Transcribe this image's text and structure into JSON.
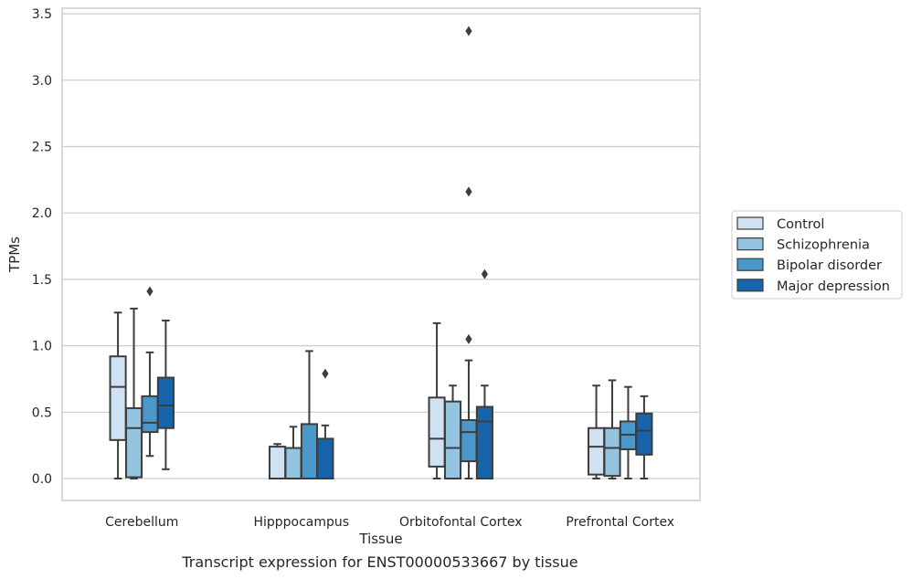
{
  "caption": "Transcript expression for ENST00000533667 by tissue",
  "chart_data": {
    "type": "box",
    "xlabel": "Tissue",
    "ylabel": "TPMs",
    "ylim": [
      -0.16,
      3.56
    ],
    "yticks": [
      0.0,
      0.5,
      1.0,
      1.5,
      2.0,
      2.5,
      3.0,
      3.5
    ],
    "ytick_labels": [
      "0.0",
      "0.5",
      "1.0",
      "1.5",
      "2.0",
      "2.5",
      "3.0",
      "3.5"
    ],
    "grid": true,
    "legend_position": "right",
    "categories": [
      "Cerebellum",
      "Hipppocampus",
      "Orbitofontal Cortex",
      "Prefrontal Cortex"
    ],
    "series": [
      {
        "name": "Control",
        "color": "#d0e1f2",
        "boxes": [
          {
            "whislo": 0.0,
            "q1": 0.29,
            "med": 0.69,
            "q3": 0.92,
            "whishi": 1.25,
            "fliers": []
          },
          {
            "whislo": 0.0,
            "q1": 0.0,
            "med": 0.0,
            "q3": 0.24,
            "whishi": 0.26,
            "fliers": []
          },
          {
            "whislo": 0.0,
            "q1": 0.09,
            "med": 0.3,
            "q3": 0.61,
            "whishi": 1.17,
            "fliers": []
          },
          {
            "whislo": 0.0,
            "q1": 0.03,
            "med": 0.24,
            "q3": 0.38,
            "whishi": 0.7,
            "fliers": []
          }
        ]
      },
      {
        "name": "Schizophrenia",
        "color": "#94c4df",
        "boxes": [
          {
            "whislo": 0.0,
            "q1": 0.01,
            "med": 0.38,
            "q3": 0.53,
            "whishi": 1.28,
            "fliers": []
          },
          {
            "whislo": 0.0,
            "q1": 0.0,
            "med": 0.0,
            "q3": 0.23,
            "whishi": 0.39,
            "fliers": []
          },
          {
            "whislo": 0.0,
            "q1": 0.0,
            "med": 0.23,
            "q3": 0.58,
            "whishi": 0.7,
            "fliers": []
          },
          {
            "whislo": 0.0,
            "q1": 0.02,
            "med": 0.23,
            "q3": 0.38,
            "whishi": 0.74,
            "fliers": []
          }
        ]
      },
      {
        "name": "Bipolar disorder",
        "color": "#4a98c9",
        "boxes": [
          {
            "whislo": 0.17,
            "q1": 0.35,
            "med": 0.42,
            "q3": 0.62,
            "whishi": 0.95,
            "fliers": [
              1.41
            ]
          },
          {
            "whislo": 0.0,
            "q1": 0.0,
            "med": 0.0,
            "q3": 0.41,
            "whishi": 0.96,
            "fliers": []
          },
          {
            "whislo": 0.0,
            "q1": 0.13,
            "med": 0.35,
            "q3": 0.44,
            "whishi": 0.89,
            "fliers": [
              3.37,
              2.16,
              1.05
            ]
          },
          {
            "whislo": 0.0,
            "q1": 0.22,
            "med": 0.33,
            "q3": 0.43,
            "whishi": 0.69,
            "fliers": []
          }
        ]
      },
      {
        "name": "Major depression",
        "color": "#1764ab",
        "boxes": [
          {
            "whislo": 0.07,
            "q1": 0.38,
            "med": 0.55,
            "q3": 0.76,
            "whishi": 1.19,
            "fliers": []
          },
          {
            "whislo": 0.0,
            "q1": 0.0,
            "med": 0.0,
            "q3": 0.3,
            "whishi": 0.4,
            "fliers": [
              0.79
            ]
          },
          {
            "whislo": 0.0,
            "q1": 0.0,
            "med": 0.43,
            "q3": 0.54,
            "whishi": 0.7,
            "fliers": [
              1.54
            ]
          },
          {
            "whislo": 0.0,
            "q1": 0.18,
            "med": 0.36,
            "q3": 0.49,
            "whishi": 0.62,
            "fliers": []
          }
        ]
      }
    ]
  }
}
